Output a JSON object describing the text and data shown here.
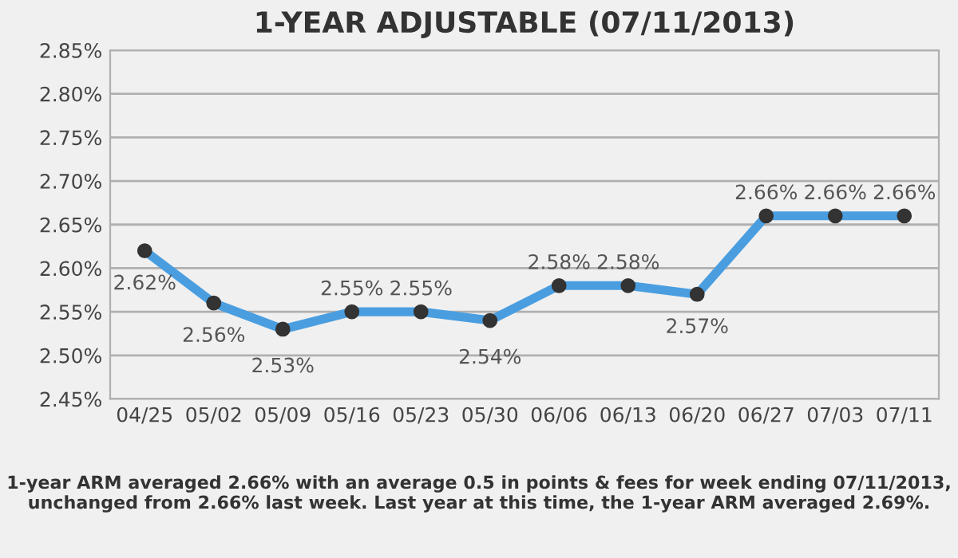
{
  "chart_data": {
    "type": "line",
    "title": "1-YEAR ADJUSTABLE (07/11/2013)",
    "categories": [
      "04/25",
      "05/02",
      "05/09",
      "05/16",
      "05/23",
      "05/30",
      "06/06",
      "06/13",
      "06/20",
      "06/27",
      "07/03",
      "07/11"
    ],
    "series": [
      {
        "values": [
          2.62,
          2.56,
          2.53,
          2.55,
          2.55,
          2.54,
          2.58,
          2.58,
          2.57,
          2.66,
          2.66,
          2.66
        ],
        "value_labels": [
          "2.62%",
          "2.56%",
          "2.53%",
          "2.55%",
          "2.55%",
          "2.54%",
          "2.58%",
          "2.58%",
          "2.57%",
          "2.66%",
          "2.66%",
          "2.66%"
        ],
        "color": "#4a9ee0"
      }
    ],
    "marker": "circle",
    "ylim": [
      2.45,
      2.85
    ],
    "yticks": [
      {
        "value": 2.45,
        "label": "2.45%"
      },
      {
        "value": 2.5,
        "label": "2.50%"
      },
      {
        "value": 2.55,
        "label": "2.55%"
      },
      {
        "value": 2.6,
        "label": "2.60%"
      },
      {
        "value": 2.65,
        "label": "2.65%"
      },
      {
        "value": 2.7,
        "label": "2.70%"
      },
      {
        "value": 2.75,
        "label": "2.75%"
      },
      {
        "value": 2.8,
        "label": "2.80%"
      },
      {
        "value": 2.85,
        "label": "2.85%"
      }
    ],
    "grid": "y",
    "annotations": [
      "1-year ARM averaged 2.66% with an average 0.5 in points & fees for week ending 07/11/2013, unchanged from 2.66% last week. Last year at this time, the 1-year ARM averaged 2.69%."
    ]
  }
}
